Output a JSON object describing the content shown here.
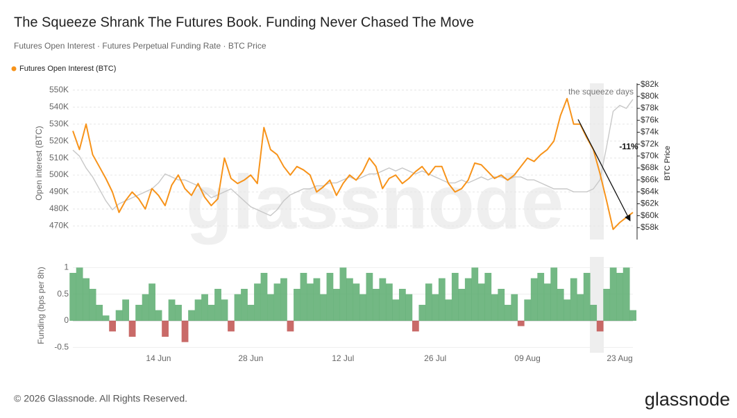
{
  "chart_data": [
    {
      "type": "line",
      "title": "The Squeeze Shrank The Futures Book. Funding Never Chased The Move",
      "subtitle": "Futures Open Interest · Futures Perpetual Funding Rate · BTC Price",
      "ylabel": "Open interest (BTC)",
      "annotations": [
        "the squeeze days",
        "-11%"
      ],
      "legend": "top-left",
      "grid": true,
      "x": [
        "01 Jun",
        "02 Jun",
        "03 Jun",
        "04 Jun",
        "05 Jun",
        "06 Jun",
        "07 Jun",
        "08 Jun",
        "09 Jun",
        "10 Jun",
        "11 Jun",
        "12 Jun",
        "13 Jun",
        "14 Jun",
        "15 Jun",
        "16 Jun",
        "17 Jun",
        "18 Jun",
        "19 Jun",
        "20 Jun",
        "21 Jun",
        "22 Jun",
        "23 Jun",
        "24 Jun",
        "25 Jun",
        "26 Jun",
        "27 Jun",
        "28 Jun",
        "29 Jun",
        "30 Jun",
        "01 Jul",
        "02 Jul",
        "03 Jul",
        "04 Jul",
        "05 Jul",
        "06 Jul",
        "07 Jul",
        "08 Jul",
        "09 Jul",
        "10 Jul",
        "11 Jul",
        "12 Jul",
        "13 Jul",
        "14 Jul",
        "15 Jul",
        "16 Jul",
        "17 Jul",
        "18 Jul",
        "19 Jul",
        "20 Jul",
        "21 Jul",
        "22 Jul",
        "23 Jul",
        "24 Jul",
        "25 Jul",
        "26 Jul",
        "27 Jul",
        "28 Jul",
        "29 Jul",
        "30 Jul",
        "31 Jul",
        "01 Aug",
        "02 Aug",
        "03 Aug",
        "04 Aug",
        "05 Aug",
        "06 Aug",
        "07 Aug",
        "08 Aug",
        "09 Aug",
        "10 Aug",
        "11 Aug",
        "12 Aug",
        "13 Aug",
        "14 Aug",
        "15 Aug",
        "16 Aug",
        "17 Aug",
        "18 Aug",
        "19 Aug",
        "20 Aug",
        "21 Aug",
        "22 Aug",
        "23 Aug",
        "24 Aug",
        "25 Aug"
      ],
      "series": [
        {
          "name": "Futures Open Interest (BTC)",
          "color": "#f7931a",
          "axis": "y",
          "values": [
            526000,
            515000,
            530000,
            512000,
            505000,
            498000,
            490000,
            478000,
            485000,
            490000,
            486000,
            480000,
            492000,
            488000,
            482000,
            494000,
            500000,
            492000,
            488000,
            495000,
            487000,
            482000,
            486000,
            510000,
            498000,
            495000,
            497000,
            500000,
            495000,
            528000,
            515000,
            512000,
            505000,
            500000,
            505000,
            503000,
            500000,
            490000,
            493000,
            497000,
            488000,
            495000,
            500000,
            497000,
            502000,
            510000,
            505000,
            492000,
            498000,
            500000,
            495000,
            498000,
            502000,
            505000,
            500000,
            505000,
            505000,
            495000,
            490000,
            492000,
            497000,
            507000,
            506000,
            502000,
            498000,
            500000,
            497000,
            500000,
            505000,
            510000,
            508000,
            512000,
            515000,
            520000,
            535000,
            545000,
            530000,
            530000,
            522000,
            515000,
            501000,
            485000,
            468000,
            472000,
            475000,
            478000
          ]
        },
        {
          "name": "BTC Price",
          "color": "#c8c8c8",
          "axis": "y2",
          "values": [
            71000,
            70000,
            68000,
            66500,
            64500,
            62500,
            61000,
            62000,
            62500,
            63000,
            63500,
            64000,
            64500,
            65500,
            67000,
            66500,
            66000,
            66000,
            65500,
            65000,
            64000,
            63000,
            63500,
            64000,
            64500,
            63500,
            62500,
            61500,
            61000,
            60500,
            60000,
            61000,
            62500,
            63500,
            64000,
            64500,
            64500,
            65000,
            65000,
            65500,
            65500,
            66000,
            66500,
            66000,
            66500,
            67000,
            67000,
            67500,
            68000,
            67500,
            68000,
            67500,
            67000,
            67500,
            67000,
            66500,
            66000,
            65500,
            65500,
            66000,
            65500,
            66000,
            66500,
            66000,
            66500,
            66500,
            66000,
            66500,
            66500,
            66000,
            66000,
            65500,
            65000,
            64500,
            64500,
            64500,
            64000,
            64000,
            64000,
            64500,
            66000,
            71500,
            77500,
            78500,
            78000,
            79500
          ]
        }
      ],
      "ylim": [
        462000,
        554000
      ],
      "yticks": [
        {
          "value": 470000,
          "label": "470K"
        },
        {
          "value": 480000,
          "label": "480K"
        },
        {
          "value": 490000,
          "label": "490K"
        },
        {
          "value": 500000,
          "label": "500K"
        },
        {
          "value": 510000,
          "label": "510K"
        },
        {
          "value": 520000,
          "label": "520K"
        },
        {
          "value": 530000,
          "label": "530K"
        },
        {
          "value": 540000,
          "label": "540K"
        },
        {
          "value": 550000,
          "label": "550K"
        }
      ],
      "y2lim": [
        56000,
        82200
      ],
      "y2ticks": [
        {
          "value": 58000,
          "label": "$58k"
        },
        {
          "value": 60000,
          "label": "$60k"
        },
        {
          "value": 62000,
          "label": "$62k"
        },
        {
          "value": 64000,
          "label": "$64k"
        },
        {
          "value": 66000,
          "label": "$66k"
        },
        {
          "value": 68000,
          "label": "$68k"
        },
        {
          "value": 70000,
          "label": "$70k"
        },
        {
          "value": 72000,
          "label": "$72k"
        },
        {
          "value": 74000,
          "label": "$74k"
        },
        {
          "value": 76000,
          "label": "$76k"
        },
        {
          "value": 78000,
          "label": "$78k"
        },
        {
          "value": 80000,
          "label": "$80k"
        },
        {
          "value": 82000,
          "label": "$82k"
        }
      ]
    },
    {
      "type": "bar",
      "ylabel": "Funding (bps per 8h)",
      "grid": true,
      "x": [
        "01 Jun",
        "02 Jun",
        "03 Jun",
        "04 Jun",
        "05 Jun",
        "06 Jun",
        "07 Jun",
        "08 Jun",
        "09 Jun",
        "10 Jun",
        "11 Jun",
        "12 Jun",
        "13 Jun",
        "14 Jun",
        "15 Jun",
        "16 Jun",
        "17 Jun",
        "18 Jun",
        "19 Jun",
        "20 Jun",
        "21 Jun",
        "22 Jun",
        "23 Jun",
        "24 Jun",
        "25 Jun",
        "26 Jun",
        "27 Jun",
        "28 Jun",
        "29 Jun",
        "30 Jun",
        "01 Jul",
        "02 Jul",
        "03 Jul",
        "04 Jul",
        "05 Jul",
        "06 Jul",
        "07 Jul",
        "08 Jul",
        "09 Jul",
        "10 Jul",
        "11 Jul",
        "12 Jul",
        "13 Jul",
        "14 Jul",
        "15 Jul",
        "16 Jul",
        "17 Jul",
        "18 Jul",
        "19 Jul",
        "20 Jul",
        "21 Jul",
        "22 Jul",
        "23 Jul",
        "24 Jul",
        "25 Jul",
        "26 Jul",
        "27 Jul",
        "28 Jul",
        "29 Jul",
        "30 Jul",
        "31 Jul",
        "01 Aug",
        "02 Aug",
        "03 Aug",
        "04 Aug",
        "05 Aug",
        "06 Aug",
        "07 Aug",
        "08 Aug",
        "09 Aug",
        "10 Aug",
        "11 Aug",
        "12 Aug",
        "13 Aug",
        "14 Aug",
        "15 Aug",
        "16 Aug",
        "17 Aug",
        "18 Aug",
        "19 Aug",
        "20 Aug",
        "21 Aug",
        "22 Aug",
        "23 Aug",
        "24 Aug",
        "25 Aug"
      ],
      "xticks": [
        "14 Jun",
        "28 Jun",
        "12 Jul",
        "26 Jul",
        "09 Aug",
        "23 Aug"
      ],
      "color": "#5aab6e",
      "negative_color": "#c0504d",
      "values": [
        0.9,
        1.0,
        0.8,
        0.6,
        0.3,
        0.1,
        -0.2,
        0.2,
        0.4,
        -0.3,
        0.3,
        0.5,
        0.7,
        0.2,
        -0.3,
        0.4,
        0.3,
        -0.4,
        0.2,
        0.4,
        0.5,
        0.3,
        0.6,
        0.4,
        -0.2,
        0.5,
        0.6,
        0.3,
        0.7,
        0.9,
        0.5,
        0.7,
        0.8,
        -0.2,
        0.6,
        0.9,
        0.7,
        0.8,
        0.5,
        0.9,
        0.6,
        1.0,
        0.8,
        0.7,
        0.5,
        0.9,
        0.6,
        0.8,
        0.7,
        0.4,
        0.6,
        0.5,
        -0.2,
        0.3,
        0.7,
        0.5,
        0.8,
        0.4,
        0.9,
        0.6,
        0.8,
        1.0,
        0.7,
        0.9,
        0.5,
        0.6,
        0.3,
        0.5,
        -0.1,
        0.4,
        0.8,
        0.9,
        0.7,
        1.0,
        0.6,
        0.4,
        0.8,
        0.5,
        0.9,
        0.3,
        -0.2,
        0.6,
        1.0,
        0.9,
        1.0,
        0.2
      ],
      "ylim": [
        -0.6,
        1.2
      ],
      "yticks": [
        -0.5,
        0,
        0.5,
        1
      ]
    }
  ],
  "watermark": "glassnode",
  "footer": "© 2026 Glassnode. All Rights Reserved.",
  "logo": "glassnode"
}
